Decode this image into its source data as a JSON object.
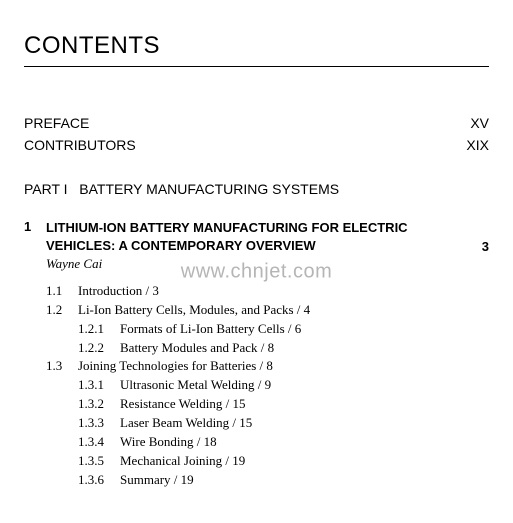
{
  "title": "CONTENTS",
  "watermark": "www.chnjet.com",
  "front_matter": [
    {
      "label": "PREFACE",
      "page": "XV"
    },
    {
      "label": "CONTRIBUTORS",
      "page": "XIX"
    }
  ],
  "part": {
    "label": "PART I",
    "title": "BATTERY MANUFACTURING SYSTEMS"
  },
  "chapter": {
    "number": "1",
    "title_line1": "LITHIUM-ION BATTERY MANUFACTURING FOR ELECTRIC",
    "title_line2": "VEHICLES: A CONTEMPORARY OVERVIEW",
    "page": "3",
    "author": "Wayne Cai"
  },
  "entries": [
    {
      "level": 1,
      "num": "1.1",
      "text": "Introduction  /  3"
    },
    {
      "level": 1,
      "num": "1.2",
      "text": "Li-Ion Battery Cells, Modules, and Packs  /  4"
    },
    {
      "level": 2,
      "num": "1.2.1",
      "text": "Formats of Li-Ion Battery Cells  /  6"
    },
    {
      "level": 2,
      "num": "1.2.2",
      "text": "Battery Modules and Pack  /  8"
    },
    {
      "level": 1,
      "num": "1.3",
      "text": "Joining Technologies for Batteries  /  8"
    },
    {
      "level": 2,
      "num": "1.3.1",
      "text": "Ultrasonic Metal Welding  /  9"
    },
    {
      "level": 2,
      "num": "1.3.2",
      "text": "Resistance Welding  /  15"
    },
    {
      "level": 2,
      "num": "1.3.3",
      "text": "Laser Beam Welding  /  15"
    },
    {
      "level": 2,
      "num": "1.3.4",
      "text": "Wire Bonding  /  18"
    },
    {
      "level": 2,
      "num": "1.3.5",
      "text": "Mechanical Joining  /  19"
    },
    {
      "level": 2,
      "num": "1.3.6",
      "text": "Summary  /  19"
    }
  ]
}
